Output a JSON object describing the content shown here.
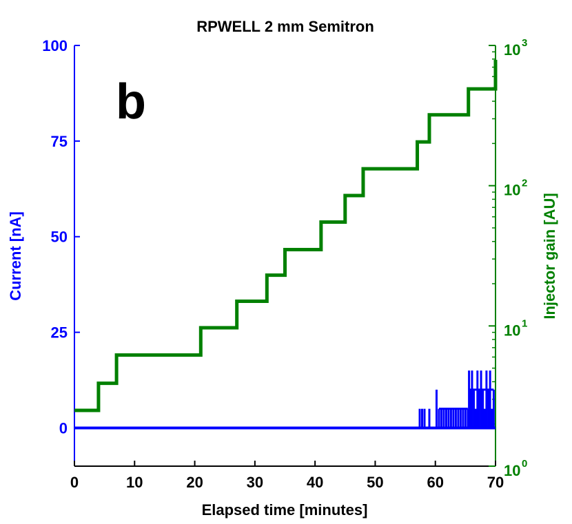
{
  "chart_data": {
    "type": "line",
    "title": "RPWELL 2 mm Semitron",
    "panel_label": "b",
    "xlabel": "Elapsed time [minutes]",
    "xlim": [
      0,
      70
    ],
    "xticks": [
      "0",
      "10",
      "20",
      "30",
      "40",
      "50",
      "60",
      "70"
    ],
    "left_axis": {
      "label": "Current [nA]",
      "color": "#0000ff",
      "ylim": [
        -10,
        100
      ],
      "ticks": [
        "0",
        "25",
        "50",
        "75",
        "100"
      ]
    },
    "right_axis": {
      "label": "Injector gain [AU]",
      "color": "#008000",
      "scale": "log",
      "ylim": [
        1,
        1000
      ],
      "tick_bases": [
        "10",
        "10",
        "10",
        "10"
      ],
      "tick_exponents": [
        "0",
        "1",
        "2",
        "3"
      ]
    },
    "series": [
      {
        "name": "Injector gain",
        "axis": "right",
        "color": "#008000",
        "step": true,
        "x": [
          0,
          4,
          7,
          17,
          21,
          27,
          32,
          35,
          41,
          45,
          48,
          57,
          59,
          65.5,
          70
        ],
        "values": [
          2.5,
          3.9,
          6.2,
          6.2,
          9.7,
          15,
          23,
          35,
          55,
          85,
          132,
          205,
          320,
          490,
          790
        ]
      },
      {
        "name": "Current",
        "axis": "left",
        "color": "#0000ff",
        "baseline_value": 0,
        "baseline_range": [
          0,
          70
        ],
        "spikes": [
          {
            "x": 57.4,
            "y": 5
          },
          {
            "x": 57.8,
            "y": 5
          },
          {
            "x": 58.2,
            "y": 5
          },
          {
            "x": 59.0,
            "y": 5
          },
          {
            "x": 60.2,
            "y": 10
          },
          {
            "x": 60.6,
            "y": 5
          },
          {
            "x": 61.0,
            "y": 5
          },
          {
            "x": 61.4,
            "y": 5
          },
          {
            "x": 61.8,
            "y": 5
          },
          {
            "x": 62.2,
            "y": 5
          },
          {
            "x": 62.6,
            "y": 5
          },
          {
            "x": 63.0,
            "y": 5
          },
          {
            "x": 63.4,
            "y": 5
          },
          {
            "x": 63.8,
            "y": 5
          },
          {
            "x": 64.2,
            "y": 5
          },
          {
            "x": 64.6,
            "y": 5
          },
          {
            "x": 65.0,
            "y": 5
          },
          {
            "x": 65.4,
            "y": 5
          },
          {
            "x": 65.6,
            "y": 15
          },
          {
            "x": 65.9,
            "y": 10
          },
          {
            "x": 66.1,
            "y": 15
          },
          {
            "x": 66.4,
            "y": 10
          },
          {
            "x": 66.7,
            "y": 5
          },
          {
            "x": 67.0,
            "y": 15
          },
          {
            "x": 67.3,
            "y": 10
          },
          {
            "x": 67.6,
            "y": 15
          },
          {
            "x": 67.9,
            "y": 10
          },
          {
            "x": 68.2,
            "y": 5
          },
          {
            "x": 68.5,
            "y": 15
          },
          {
            "x": 68.8,
            "y": 10
          },
          {
            "x": 69.1,
            "y": 15
          },
          {
            "x": 69.4,
            "y": 5
          },
          {
            "x": 69.7,
            "y": 10
          }
        ]
      }
    ]
  }
}
